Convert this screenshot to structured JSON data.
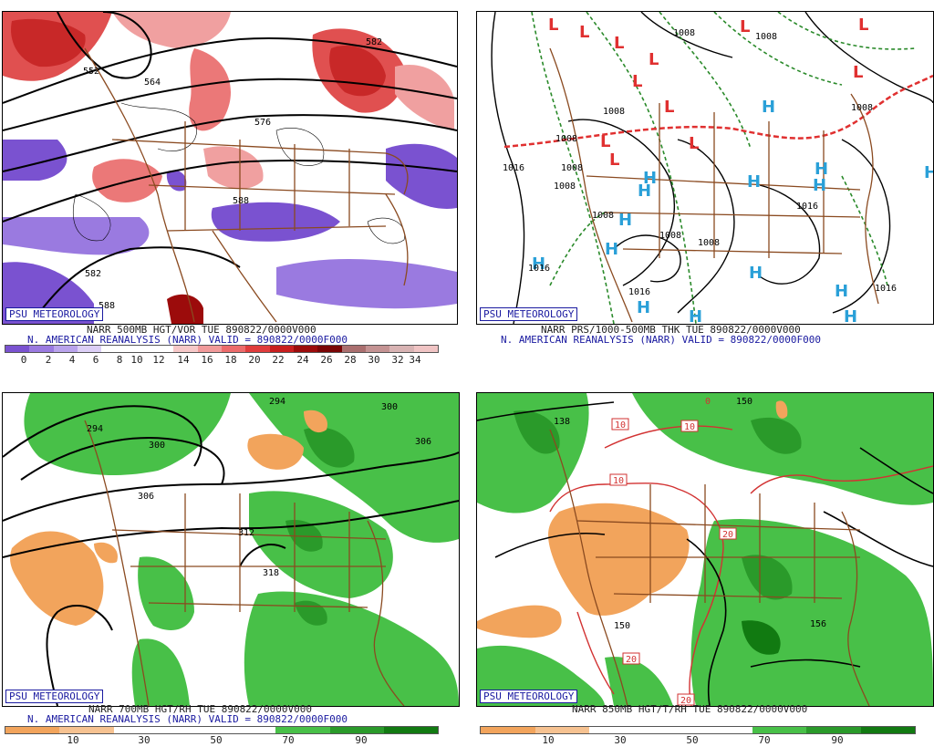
{
  "panels": [
    {
      "id": "vort500",
      "brand": "PSU METEOROLOGY",
      "title": "NARR 500MB HGT/VOR TUE 890822/0000V000",
      "subtitle": "N. AMERICAN REANALYSIS (NARR) VALID = 890822/0000F000",
      "colorbar": {
        "colors": [
          "#7a52d0",
          "#9a7ae0",
          "#b9a3ec",
          "#dccff6",
          "#ffffff",
          "#ffffff",
          "#ffffff",
          "#f6c8c8",
          "#f19a9a",
          "#ec6b6b",
          "#e03c3c",
          "#c81e1e",
          "#9c0b0b",
          "#7a0505",
          "#aa6f6f",
          "#c49393",
          "#d8b3b3",
          "#f0c4c4"
        ],
        "ticks": [
          "0",
          "2",
          "4",
          "6",
          "8",
          "10",
          "12",
          "14",
          "16",
          "18",
          "20",
          "22",
          "24",
          "26",
          "28",
          "30",
          "32",
          "34"
        ]
      },
      "contour_labels": [
        "552",
        "564",
        "582",
        "576",
        "588",
        "588",
        "582"
      ]
    },
    {
      "id": "thk",
      "brand": "PSU METEOROLOGY",
      "title": "NARR PRS/1000-500MB THK TUE 890822/0000V000",
      "subtitle": "N. AMERICAN REANALYSIS (NARR) VALID = 890822/0000F000",
      "contour_labels": [
        "1008",
        "1008",
        "1008",
        "1008",
        "1016",
        "1008",
        "1008",
        "1008",
        "1008",
        "1016",
        "1016",
        "1016",
        "1016",
        "1008",
        "1008"
      ],
      "low_symbol": "L",
      "high_symbol": "H"
    },
    {
      "id": "rh700",
      "brand": "PSU METEOROLOGY",
      "title": "NARR 700MB HGT/RH TUE 890822/0000V000",
      "subtitle": "N. AMERICAN REANALYSIS (NARR) VALID = 890822/0000F000",
      "colorbar": {
        "colors": [
          "#f2a45c",
          "#f6c291",
          "#ffffff",
          "#ffffff",
          "#ffffff",
          "#48c048",
          "#2a9a2a",
          "#117a11"
        ],
        "ticks": [
          "10",
          "30",
          "50",
          "70",
          "90"
        ]
      },
      "contour_labels": [
        "294",
        "294",
        "300",
        "300",
        "306",
        "306",
        "312",
        "318"
      ]
    },
    {
      "id": "t850",
      "brand": "PSU METEOROLOGY",
      "title": "NARR 850MB HGT/T/RH TUE 890822/0000V000",
      "colorbar": {
        "colors": [
          "#f2a45c",
          "#f6c291",
          "#ffffff",
          "#ffffff",
          "#ffffff",
          "#48c048",
          "#2a9a2a",
          "#117a11"
        ],
        "ticks": [
          "10",
          "30",
          "50",
          "70",
          "90"
        ]
      },
      "contour_labels": [
        "138",
        "150",
        "156",
        "150"
      ],
      "temp_labels": [
        "10",
        "10",
        "10",
        "20",
        "20",
        "20",
        "20",
        "0"
      ]
    }
  ]
}
